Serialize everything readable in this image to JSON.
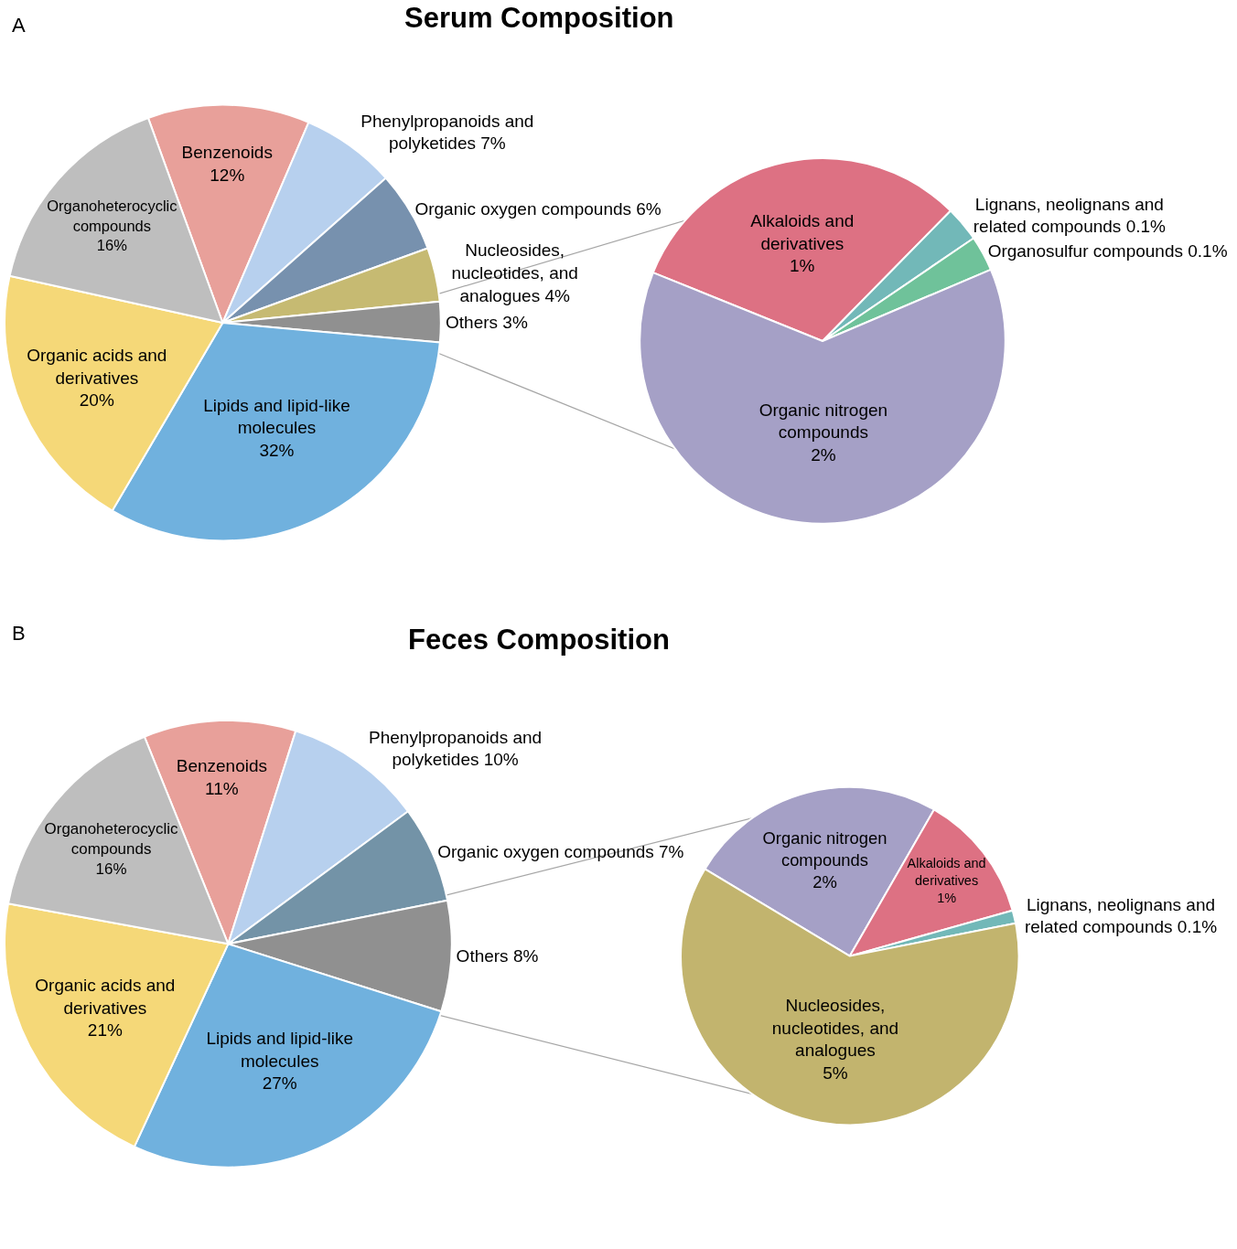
{
  "chart_data": [
    {
      "type": "pie",
      "title": "Serum Composition",
      "annotations": [
        "A"
      ],
      "categories": [
        "Benzenoids",
        "Phenylpropanoids and polyketides",
        "Organic oxygen compounds",
        "Nucleosides, nucleotides, and analogues",
        "Others",
        "Lipids and lipid-like molecules",
        "Organic acids and derivatives",
        "Organoheterocyclic compounds"
      ],
      "values": [
        12,
        7,
        6,
        4,
        3,
        32,
        20,
        16
      ],
      "value_labels": [
        "12%",
        "7%",
        "6%",
        "4%",
        "3%",
        "32%",
        "20%",
        "16%"
      ],
      "colors": [
        "#e8a09a",
        "#b7d0ee",
        "#7791ae",
        "#c6ba72",
        "#909090",
        "#70b1de",
        "#f5d878",
        "#bebebe"
      ]
    },
    {
      "type": "pie",
      "categories": [
        "Alkaloids and derivatives",
        "Lignans, neolignans and related compounds",
        "Organosulfur compounds",
        "Organic nitrogen compounds"
      ],
      "values": [
        1,
        0.1,
        0.1,
        2
      ],
      "value_labels": [
        "1%",
        "0.1%",
        "0.1%",
        "2%"
      ],
      "colors": [
        "#dd7183",
        "#72b8b8",
        "#6fc29a",
        "#a5a0c6"
      ]
    },
    {
      "type": "pie",
      "title": "Feces Composition",
      "annotations": [
        "B"
      ],
      "categories": [
        "Benzenoids",
        "Phenylpropanoids and polyketides",
        "Organic oxygen compounds",
        "Others",
        "Lipids and lipid-like molecules",
        "Organic acids and derivatives",
        "Organoheterocyclic compounds"
      ],
      "values": [
        11,
        10,
        7,
        8,
        27,
        21,
        16
      ],
      "value_labels": [
        "11%",
        "10%",
        "7%",
        "8%",
        "27%",
        "21%",
        "16%"
      ],
      "colors": [
        "#e8a09a",
        "#b7d0ee",
        "#7393a7",
        "#909090",
        "#70b1de",
        "#f5d878",
        "#bebebe"
      ]
    },
    {
      "type": "pie",
      "categories": [
        "Organic nitrogen compounds",
        "Alkaloids and derivatives",
        "Lignans, neolignans and related compounds",
        "Nucleosides, nucleotides, and analogues"
      ],
      "values": [
        2,
        1,
        0.1,
        5
      ],
      "value_labels": [
        "2%",
        "1%",
        "0.1%",
        "5%"
      ],
      "colors": [
        "#a5a0c6",
        "#dd7183",
        "#72b8b8",
        "#c2b46e"
      ]
    }
  ]
}
